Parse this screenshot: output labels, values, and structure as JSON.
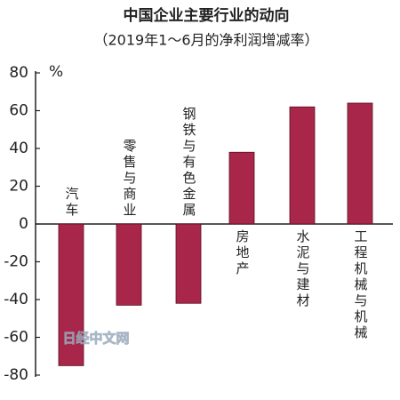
{
  "chart_data": {
    "type": "bar",
    "title": "中国企业主要行业的动向",
    "subtitle": "（2019年1～6月的净利润增减率）",
    "y_unit": "%",
    "categories": [
      "汽车",
      "零售与商业",
      "钢铁与有色金属",
      "房地产",
      "水泥与建材",
      "工程机械与机械"
    ],
    "values": [
      -75,
      -43,
      -42,
      38,
      62,
      64
    ],
    "color": "#a8264a",
    "ylim": [
      -80,
      80
    ],
    "yticks": [
      -80,
      -60,
      -40,
      -20,
      0,
      20,
      40,
      60,
      80
    ],
    "watermark": "日经中文网"
  }
}
